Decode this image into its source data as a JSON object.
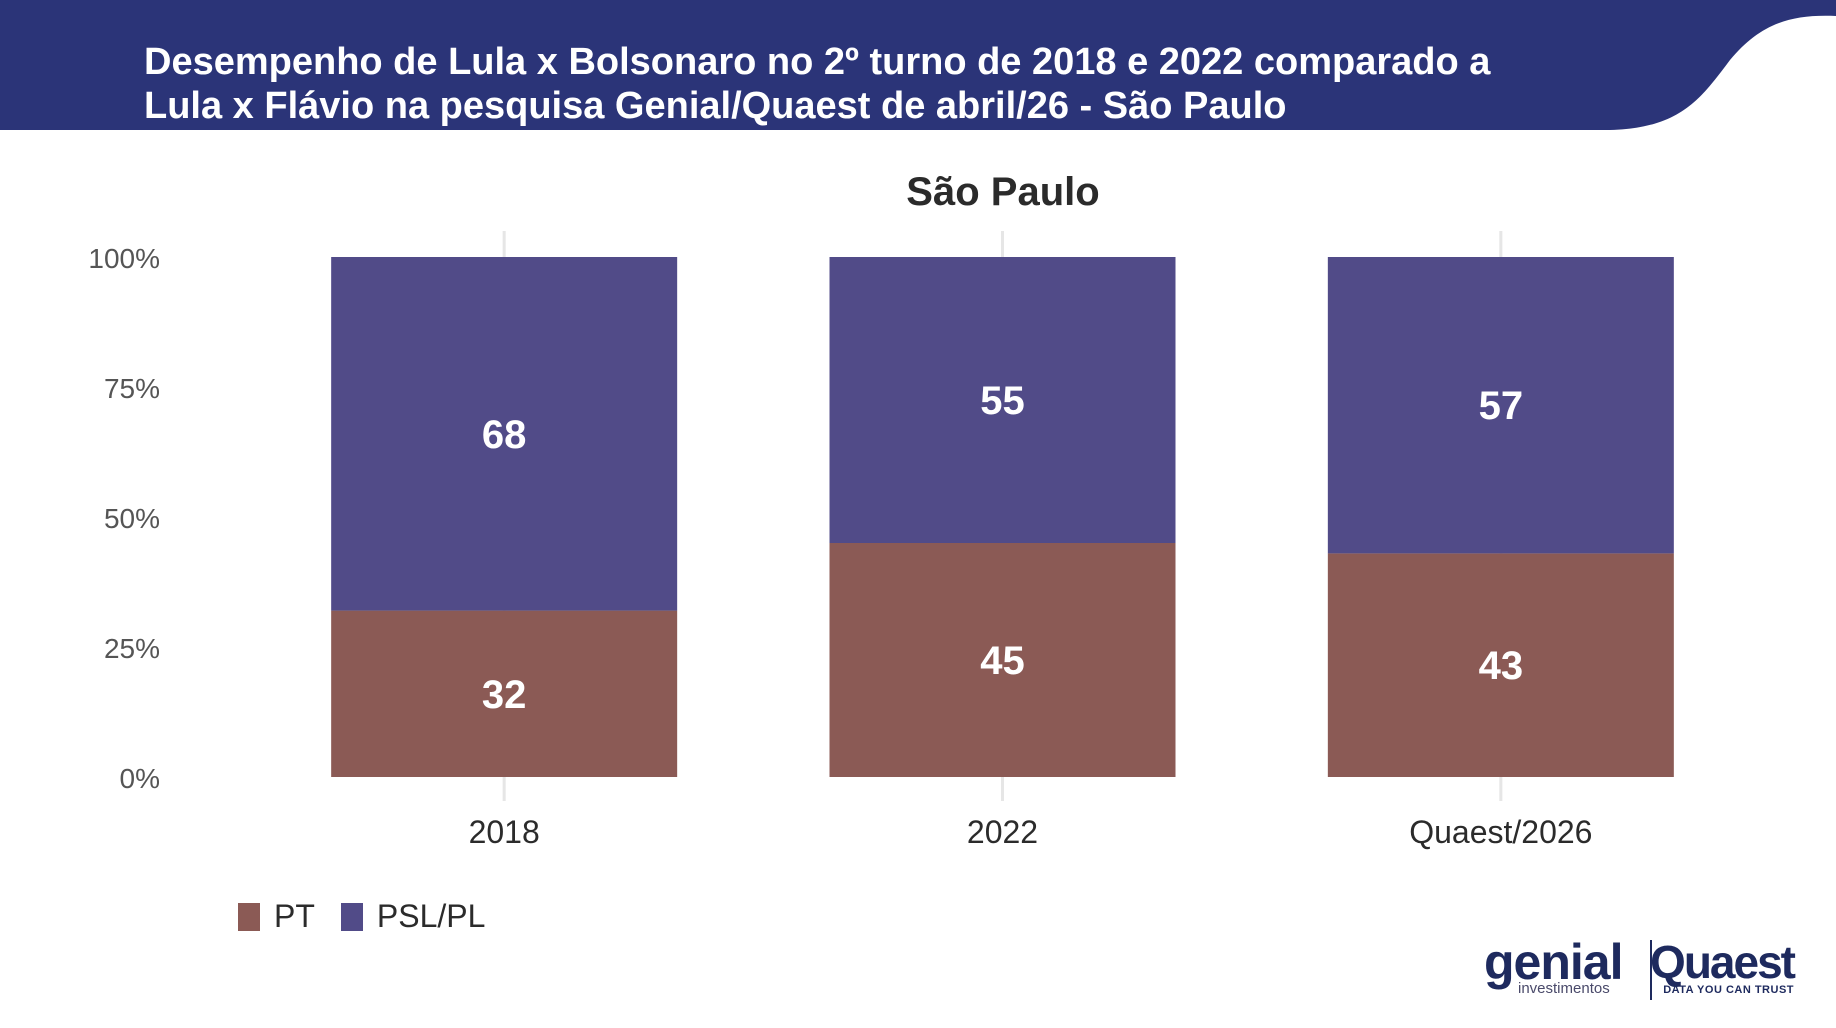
{
  "header": {
    "title_line1": "Desempenho de Lula x Bolsonaro no 2º turno de 2018 e 2022 comparado a",
    "title_line2": "Lula x Flávio na pesquisa Genial/Quaest de abril/26 - São Paulo",
    "background_color": "#2b3478"
  },
  "chart_data": {
    "type": "bar",
    "stacked": true,
    "title": "São Paulo",
    "categories": [
      "2018",
      "2022",
      "Quaest/2026"
    ],
    "series": [
      {
        "name": "PT",
        "color": "#8b5a55",
        "values": [
          32,
          45,
          43
        ]
      },
      {
        "name": "PSL/PL",
        "color": "#514b88",
        "values": [
          68,
          55,
          57
        ]
      }
    ],
    "ylim": [
      0,
      100
    ],
    "yticks": [
      0,
      25,
      50,
      75,
      100
    ],
    "ytick_labels": [
      "0%",
      "25%",
      "50%",
      "75%",
      "100%"
    ],
    "xlabel": "",
    "ylabel": "",
    "legend": "bottom-left",
    "grid": "vertical"
  },
  "legend": {
    "items": [
      {
        "label": "PT",
        "color": "#8b5a55"
      },
      {
        "label": "PSL/PL",
        "color": "#514b88"
      }
    ]
  },
  "logos": {
    "genial": "genial",
    "genial_sub": "investimentos",
    "quaest": "Quaest",
    "quaest_sub": "DATA YOU CAN TRUST"
  }
}
